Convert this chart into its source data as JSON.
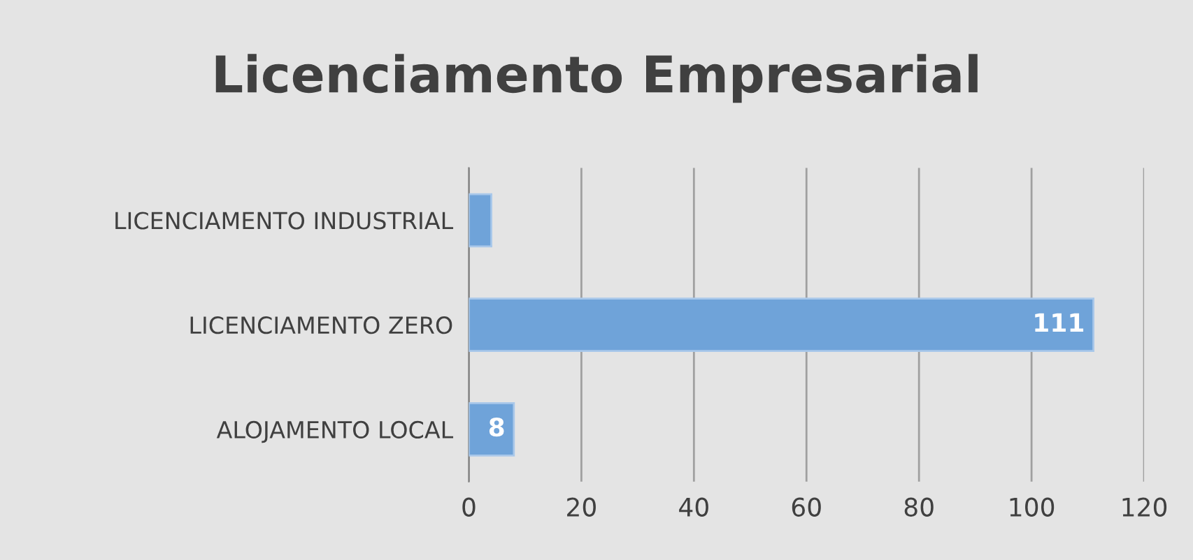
{
  "chart_data": {
    "type": "bar",
    "title": "Licenciamento Empresarial",
    "orientation": "horizontal",
    "categories": [
      "LICENCIAMENTO INDUSTRIAL",
      "LICENCIAMENTO ZERO",
      "ALOJAMENTO LOCAL"
    ],
    "values": [
      4,
      111,
      8
    ],
    "value_labels": [
      null,
      "111",
      "8"
    ],
    "color": "#6fa3d9",
    "xlim": [
      0,
      120
    ],
    "xticks": [
      0,
      20,
      40,
      60,
      80,
      100,
      120
    ],
    "grid": "x",
    "legend": false
  }
}
